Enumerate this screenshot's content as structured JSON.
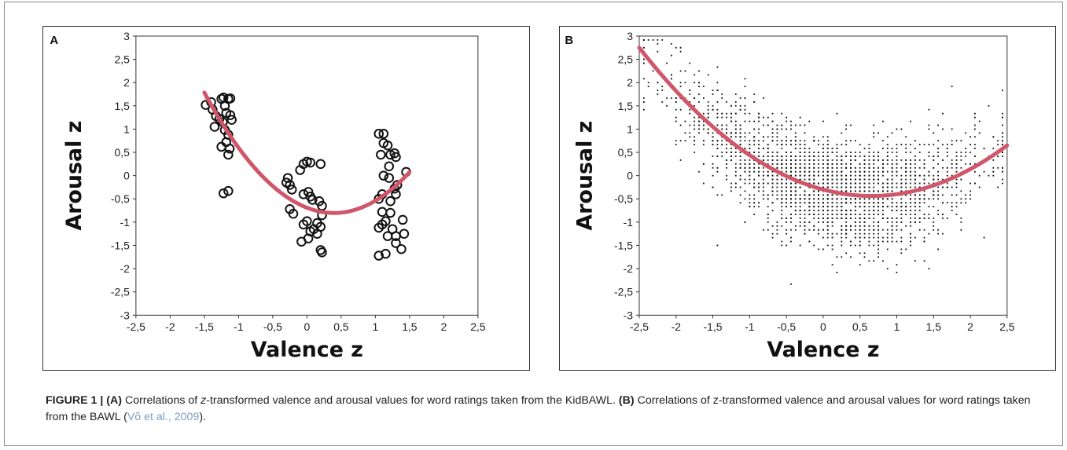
{
  "colors": {
    "fit_curve": "#d0566a",
    "frame": "#8a8a8a",
    "axis": "#333333",
    "text": "#222222",
    "citation": "#7a9fbf"
  },
  "chart_data": [
    {
      "type": "scatter",
      "panel_label": "A",
      "xlabel": "Valence z",
      "ylabel": "Arousal z",
      "xlim": [
        -2.5,
        2.5
      ],
      "ylim": [
        -3,
        3
      ],
      "x_ticks": [
        "-2,5",
        "-2",
        "-1,5",
        "-1",
        "-0,5",
        "0",
        "0,5",
        "1",
        "1,5",
        "2",
        "2,5"
      ],
      "y_ticks": [
        "3",
        "2,5",
        "2",
        "1,5",
        "1",
        "0,5",
        "0",
        "-0,5",
        "-1",
        "-1,5",
        "-2",
        "-2,5",
        "-3"
      ],
      "marker": "open-circle",
      "grid": false,
      "points": [
        [
          -1.48,
          1.52
        ],
        [
          -1.4,
          1.58
        ],
        [
          -1.38,
          1.42
        ],
        [
          -1.33,
          1.28
        ],
        [
          -1.35,
          1.05
        ],
        [
          -1.28,
          1.22
        ],
        [
          -1.25,
          1.65
        ],
        [
          -1.22,
          1.68
        ],
        [
          -1.2,
          1.5
        ],
        [
          -1.18,
          1.35
        ],
        [
          -1.23,
          1.15
        ],
        [
          -1.2,
          0.98
        ],
        [
          -1.25,
          0.62
        ],
        [
          -1.18,
          0.72
        ],
        [
          -1.15,
          1.65
        ],
        [
          -1.12,
          1.66
        ],
        [
          -1.12,
          1.3
        ],
        [
          -1.1,
          1.2
        ],
        [
          -1.15,
          0.88
        ],
        [
          -1.13,
          0.58
        ],
        [
          -1.15,
          0.45
        ],
        [
          -1.22,
          -0.38
        ],
        [
          -1.15,
          -0.33
        ],
        [
          -0.3,
          -0.15
        ],
        [
          -0.28,
          -0.05
        ],
        [
          -0.25,
          -0.2
        ],
        [
          -0.22,
          -0.3
        ],
        [
          -0.25,
          -0.72
        ],
        [
          -0.2,
          -0.82
        ],
        [
          -0.1,
          0.12
        ],
        [
          -0.05,
          0.25
        ],
        [
          0.0,
          0.3
        ],
        [
          0.05,
          0.28
        ],
        [
          0.2,
          0.25
        ],
        [
          -0.05,
          -0.4
        ],
        [
          0.02,
          -0.35
        ],
        [
          0.05,
          -0.45
        ],
        [
          0.08,
          -0.52
        ],
        [
          0.0,
          -0.98
        ],
        [
          -0.05,
          -1.05
        ],
        [
          0.05,
          -1.2
        ],
        [
          0.1,
          -1.15
        ],
        [
          -0.08,
          -1.42
        ],
        [
          0.02,
          -1.35
        ],
        [
          0.15,
          -1.02
        ],
        [
          0.2,
          -1.1
        ],
        [
          0.15,
          -1.25
        ],
        [
          0.22,
          -0.85
        ],
        [
          0.22,
          -0.65
        ],
        [
          0.18,
          -0.55
        ],
        [
          0.2,
          -1.6
        ],
        [
          0.22,
          -1.65
        ],
        [
          1.05,
          0.9
        ],
        [
          1.12,
          0.9
        ],
        [
          1.08,
          0.45
        ],
        [
          1.12,
          0.7
        ],
        [
          1.18,
          0.65
        ],
        [
          1.22,
          0.45
        ],
        [
          1.28,
          0.48
        ],
        [
          1.3,
          0.4
        ],
        [
          1.2,
          0.2
        ],
        [
          1.12,
          0.0
        ],
        [
          1.2,
          -0.05
        ],
        [
          1.05,
          -0.5
        ],
        [
          1.1,
          -0.4
        ],
        [
          1.22,
          -0.55
        ],
        [
          1.3,
          -0.4
        ],
        [
          1.28,
          -0.28
        ],
        [
          1.32,
          -0.2
        ],
        [
          1.45,
          0.08
        ],
        [
          1.1,
          -0.78
        ],
        [
          1.22,
          -0.8
        ],
        [
          1.15,
          -0.98
        ],
        [
          1.05,
          -1.12
        ],
        [
          1.1,
          -1.05
        ],
        [
          1.18,
          -1.3
        ],
        [
          1.25,
          -1.15
        ],
        [
          1.3,
          -1.3
        ],
        [
          1.4,
          -0.95
        ],
        [
          1.42,
          -1.25
        ],
        [
          1.38,
          -1.58
        ],
        [
          1.3,
          -1.45
        ],
        [
          1.05,
          -1.72
        ],
        [
          1.15,
          -1.68
        ]
      ],
      "fit_curve": {
        "kind": "quadratic",
        "a": 0.72,
        "b": -0.57,
        "c": -0.69,
        "x_range": [
          -1.5,
          1.5
        ]
      }
    },
    {
      "type": "scatter",
      "panel_label": "B",
      "xlabel": "Valence z",
      "ylabel": "Arousal z",
      "xlim": [
        -2.5,
        2.5
      ],
      "ylim": [
        -3,
        3
      ],
      "x_ticks": [
        "-2,5",
        "-2",
        "-1,5",
        "-1",
        "-0,5",
        "0",
        "0,5",
        "1",
        "1,5",
        "2",
        "2,5"
      ],
      "y_ticks": [
        "3",
        "2,5",
        "2",
        "1,5",
        "1",
        "0,5",
        "0",
        "-0,5",
        "-1",
        "-1,5",
        "-2",
        "-2,5",
        "-3"
      ],
      "marker": "dot",
      "grid": false,
      "point_cloud": {
        "n": 2700,
        "valence_mean": 0.1,
        "valence_sd": 1.0,
        "valence_range": [
          -2.45,
          2.45
        ],
        "residual_sd": 0.58,
        "arousal_range": [
          -2.45,
          2.9
        ]
      },
      "fit_curve": {
        "kind": "quadratic",
        "a": 0.32,
        "b": -0.42,
        "c": -0.3,
        "x_range": [
          -2.5,
          2.5
        ]
      }
    }
  ],
  "caption": {
    "figure_label": "FIGURE 1 | ",
    "a_label": "(A)",
    "a_text_1": " Correlations of ",
    "z_italic": "z",
    "a_text_2": "-transformed valence and arousal values for word ratings taken from the KidBAWL. ",
    "b_label": "(B)",
    "b_text_1": " Correlations of z-transformed valence and arousal values for word ratings taken from the BAWL (",
    "citation": "Võ et al., 2009",
    "b_text_2": ")."
  }
}
